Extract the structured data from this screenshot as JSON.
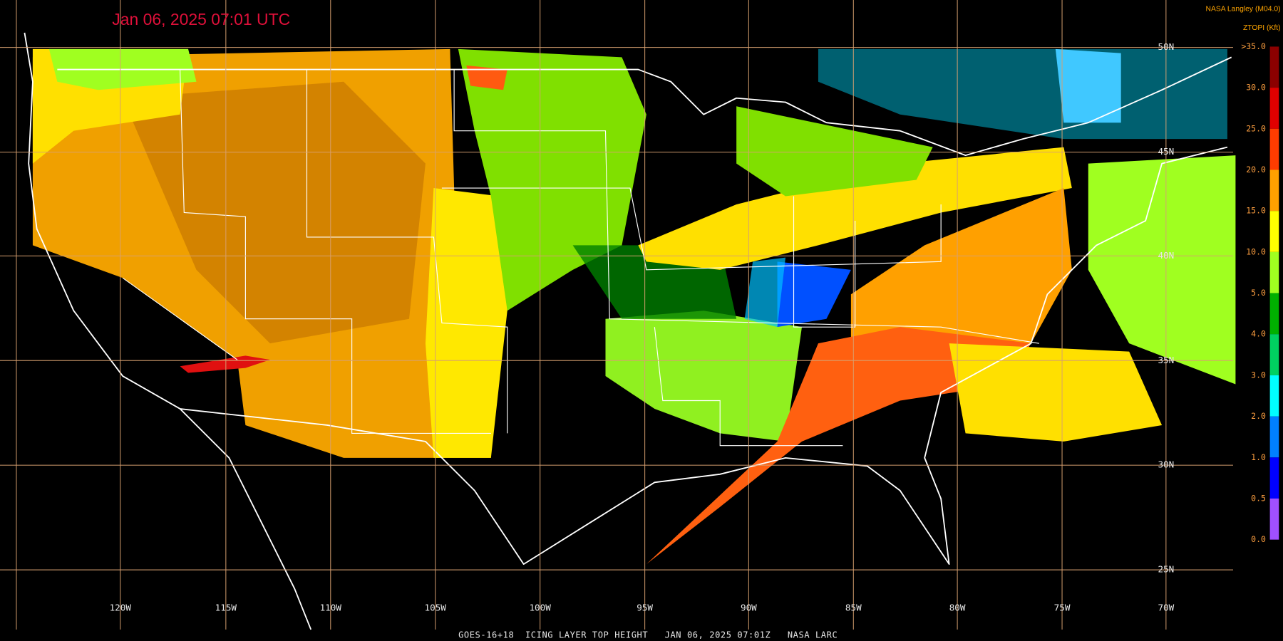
{
  "header": {
    "title": "Jan 06, 2025 07:01 UTC",
    "credit": "NASA Langley (M04.0)",
    "legend_title": "ZTOPI (Kft)"
  },
  "legend": {
    "items": [
      {
        "label": ">35.0",
        "color": "#8b0000"
      },
      {
        "label": "30.0",
        "color": "#e00000"
      },
      {
        "label": "25.0",
        "color": "#ff3c00"
      },
      {
        "label": "20.0",
        "color": "#ffa000"
      },
      {
        "label": "15.0",
        "color": "#ffff00"
      },
      {
        "label": "10.0",
        "color": "#a0ff20"
      },
      {
        "label": "5.0",
        "color": "#00b000"
      },
      {
        "label": "4.0",
        "color": "#00d060"
      },
      {
        "label": "3.0",
        "color": "#00ffff"
      },
      {
        "label": "2.0",
        "color": "#0080ff"
      },
      {
        "label": "1.0",
        "color": "#0000ff"
      },
      {
        "label": "0.5",
        "color": "#a050ff"
      },
      {
        "label": "0.0"
      }
    ]
  },
  "latitudes": [
    "50N",
    "45N",
    "40N",
    "35N",
    "30N",
    "25N"
  ],
  "longitudes": [
    "120W",
    "115W",
    "110W",
    "105W",
    "100W",
    "95W",
    "90W",
    "85W",
    "80W",
    "75W",
    "70W"
  ],
  "footer": "GOES-16+18  ICING LAYER TOP HEIGHT   JAN 06, 2025 07:01Z   NASA LARC"
}
